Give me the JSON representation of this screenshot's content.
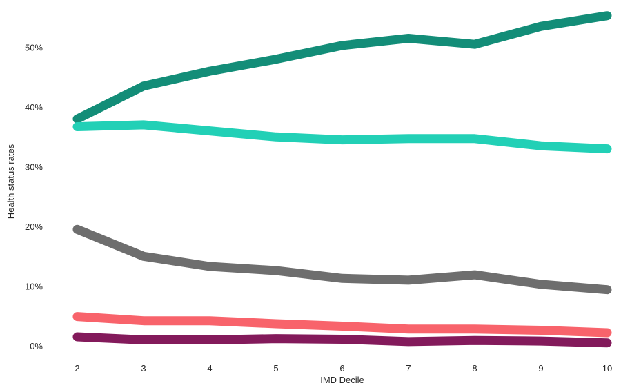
{
  "chart_data": {
    "type": "line",
    "title": "",
    "xlabel": "IMD Decile",
    "ylabel": "Health status rates",
    "x": [
      2,
      3,
      4,
      5,
      6,
      7,
      8,
      9,
      10
    ],
    "x_tick_labels": [
      "2",
      "3",
      "4",
      "5",
      "6",
      "7",
      "8",
      "9",
      "10"
    ],
    "y_ticks": [
      0,
      10,
      20,
      30,
      40,
      50
    ],
    "y_tick_labels": [
      "0%",
      "10%",
      "20%",
      "30%",
      "40%",
      "50%"
    ],
    "xlim": [
      2,
      10
    ],
    "ylim": [
      0,
      55
    ],
    "grid": false,
    "legend": "none",
    "series": [
      {
        "color": "#138d78",
        "values": [
          38.0,
          43.5,
          46.0,
          48.0,
          50.3,
          51.5,
          50.5,
          53.5,
          55.3
        ]
      },
      {
        "color": "#22d0b6",
        "values": [
          36.7,
          37.0,
          36.0,
          35.0,
          34.5,
          34.7,
          34.7,
          33.5,
          33.0
        ]
      },
      {
        "color": "#6e6e6e",
        "values": [
          19.5,
          15.0,
          13.3,
          12.6,
          11.3,
          11.0,
          11.9,
          10.3,
          9.4
        ]
      },
      {
        "color": "#f8636b",
        "values": [
          4.9,
          4.2,
          4.2,
          3.7,
          3.3,
          2.8,
          2.8,
          2.6,
          2.2
        ]
      },
      {
        "color": "#831a5b",
        "values": [
          1.5,
          1.0,
          1.0,
          1.2,
          1.1,
          0.7,
          0.9,
          0.8,
          0.5
        ]
      }
    ]
  }
}
